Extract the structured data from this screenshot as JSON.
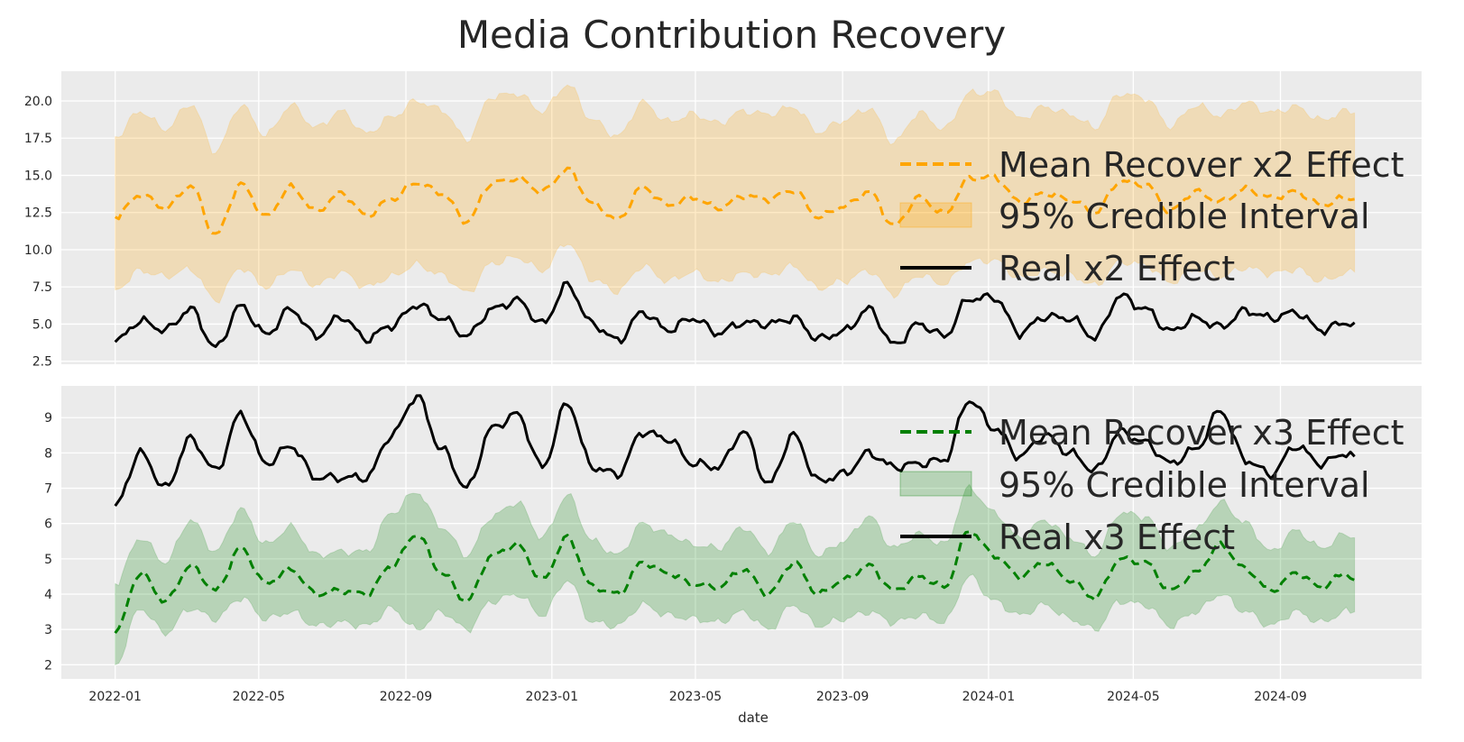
{
  "chart_data": {
    "title": "Media Contribution Recovery",
    "xlabel": "date",
    "x_ticks": [
      "2022-01",
      "2022-05",
      "2022-09",
      "2023-01",
      "2023-05",
      "2023-09",
      "2024-01",
      "2024-05",
      "2024-09"
    ],
    "x_range": [
      "2021-11-17",
      "2024-12-28"
    ],
    "grid": true,
    "legend_position": "right",
    "panels": [
      {
        "type": "line",
        "ylim": [
          2.3,
          22.0
        ],
        "y_ticks": [
          "2.5",
          "5.0",
          "7.5",
          "10.0",
          "12.5",
          "15.0",
          "17.5",
          "20.0"
        ],
        "series": [
          {
            "name": "Mean Recover x2 Effect",
            "color": "#ffa500",
            "style": "dashed",
            "x": [
              "2022-01-01",
              "2022-01-22",
              "2022-02-12",
              "2022-03-05",
              "2022-03-26",
              "2022-04-16",
              "2022-05-07",
              "2022-05-28",
              "2022-06-18",
              "2022-07-09",
              "2022-07-30",
              "2022-08-20",
              "2022-09-10",
              "2022-10-01",
              "2022-10-22",
              "2022-11-12",
              "2022-12-03",
              "2022-12-24",
              "2023-01-14",
              "2023-02-04",
              "2023-02-25",
              "2023-03-18",
              "2023-04-08",
              "2023-04-29",
              "2023-05-20",
              "2023-06-10",
              "2023-07-01",
              "2023-07-22",
              "2023-08-12",
              "2023-09-02",
              "2023-09-23",
              "2023-10-14",
              "2023-11-04",
              "2023-11-25",
              "2023-12-16",
              "2024-01-06",
              "2024-01-27",
              "2024-02-17",
              "2024-03-09",
              "2024-03-30",
              "2024-04-20",
              "2024-05-11",
              "2024-06-01",
              "2024-06-22",
              "2024-07-13",
              "2024-08-03",
              "2024-08-24",
              "2024-09-14",
              "2024-10-05",
              "2024-10-26",
              "2024-11-02"
            ],
            "values": [
              12.2,
              13.7,
              12.8,
              14.3,
              11.0,
              14.4,
              12.2,
              14.2,
              12.6,
              13.8,
              12.3,
              13.4,
              14.5,
              13.8,
              11.9,
              14.5,
              14.8,
              13.9,
              15.4,
              13.1,
              12.0,
              14.2,
              13.0,
              13.5,
              12.8,
              13.6,
              13.4,
              14.0,
              12.2,
              12.9,
              13.9,
              11.6,
              13.5,
              12.4,
              14.8,
              14.9,
              13.2,
              13.8,
              13.4,
              12.5,
              14.6,
              14.4,
              12.6,
              13.9,
              13.2,
              14.1,
              13.5,
              13.9,
              13.0,
              13.5,
              13.4
            ]
          },
          {
            "name": "95% Credible Interval",
            "color": "#ffa500",
            "style": "band",
            "lower": [
              7.3,
              8.6,
              8.2,
              8.7,
              6.6,
              8.8,
              7.5,
              8.7,
              7.6,
              8.5,
              7.5,
              8.2,
              9.0,
              8.3,
              7.1,
              9.1,
              9.5,
              8.6,
              10.5,
              8.0,
              7.2,
              8.9,
              7.9,
              8.5,
              7.8,
              8.4,
              8.3,
              8.9,
              7.4,
              7.9,
              8.6,
              7.0,
              8.3,
              7.7,
              9.2,
              9.3,
              8.1,
              8.6,
              8.3,
              7.6,
              9.2,
              9.0,
              7.8,
              8.7,
              8.2,
              8.8,
              8.4,
              8.7,
              7.9,
              8.4,
              8.5
            ],
            "upper": [
              17.6,
              19.3,
              18.1,
              19.8,
              16.6,
              19.7,
              17.7,
              19.7,
              18.2,
              19.3,
              17.8,
              18.9,
              20.0,
              19.4,
              17.4,
              20.3,
              20.5,
              19.3,
              21.1,
              18.7,
              17.6,
              19.9,
              18.6,
              19.1,
              18.5,
              19.3,
              19.1,
              19.6,
              17.9,
              18.7,
              19.5,
              17.2,
              19.2,
              18.1,
              20.5,
              20.6,
              18.8,
              19.6,
              19.1,
              18.2,
              20.5,
              20.2,
              18.3,
              19.7,
              19.0,
              19.9,
              19.2,
              19.6,
              18.7,
              19.3,
              19.2
            ]
          },
          {
            "name": "Real x2 Effect",
            "color": "#000000",
            "style": "solid",
            "x": [
              "2022-01-01",
              "2022-01-22",
              "2022-02-12",
              "2022-03-05",
              "2022-03-26",
              "2022-04-16",
              "2022-05-07",
              "2022-05-28",
              "2022-06-18",
              "2022-07-09",
              "2022-07-30",
              "2022-08-20",
              "2022-09-10",
              "2022-10-01",
              "2022-10-22",
              "2022-11-12",
              "2022-12-03",
              "2022-12-24",
              "2023-01-14",
              "2023-02-04",
              "2023-02-25",
              "2023-03-18",
              "2023-04-08",
              "2023-04-29",
              "2023-05-20",
              "2023-06-10",
              "2023-07-01",
              "2023-07-22",
              "2023-08-12",
              "2023-09-02",
              "2023-09-23",
              "2023-10-14",
              "2023-11-04",
              "2023-11-25",
              "2023-12-16",
              "2024-01-06",
              "2024-01-27",
              "2024-02-17",
              "2024-03-09",
              "2024-03-30",
              "2024-04-20",
              "2024-05-11",
              "2024-06-01",
              "2024-06-22",
              "2024-07-13",
              "2024-08-03",
              "2024-08-24",
              "2024-09-14",
              "2024-10-05",
              "2024-10-26",
              "2024-11-02"
            ],
            "values": [
              3.8,
              5.2,
              4.6,
              6.0,
              3.4,
              6.2,
              4.3,
              6.0,
              4.2,
              5.5,
              4.0,
              4.9,
              6.3,
              5.4,
              4.2,
              6.0,
              6.6,
              5.0,
              7.6,
              5.0,
              3.9,
              5.8,
              4.6,
              5.4,
              4.4,
              5.1,
              5.0,
              5.4,
              4.0,
              4.5,
              6.0,
              3.6,
              5.0,
              4.2,
              6.7,
              6.8,
              4.4,
              5.5,
              5.4,
              4.1,
              6.9,
              6.0,
              4.5,
              5.4,
              4.8,
              5.9,
              5.4,
              5.8,
              4.6,
              5.1,
              5.1
            ]
          }
        ]
      },
      {
        "type": "line",
        "ylim": [
          1.6,
          9.9
        ],
        "y_ticks": [
          "2",
          "3",
          "4",
          "5",
          "6",
          "7",
          "8",
          "9"
        ],
        "series": [
          {
            "name": "Mean Recover x3 Effect",
            "color": "#008000",
            "style": "dashed",
            "x": [
              "2022-01-01",
              "2022-01-22",
              "2022-02-12",
              "2022-03-05",
              "2022-03-26",
              "2022-04-16",
              "2022-05-07",
              "2022-05-28",
              "2022-06-18",
              "2022-07-09",
              "2022-07-30",
              "2022-08-20",
              "2022-09-10",
              "2022-10-01",
              "2022-10-22",
              "2022-11-12",
              "2022-12-03",
              "2022-12-24",
              "2023-01-14",
              "2023-02-04",
              "2023-02-25",
              "2023-03-18",
              "2023-04-08",
              "2023-04-29",
              "2023-05-20",
              "2023-06-10",
              "2023-07-01",
              "2023-07-22",
              "2023-08-12",
              "2023-09-02",
              "2023-09-23",
              "2023-10-14",
              "2023-11-04",
              "2023-11-25",
              "2023-12-16",
              "2024-01-06",
              "2024-01-27",
              "2024-02-17",
              "2024-03-09",
              "2024-03-30",
              "2024-04-20",
              "2024-05-11",
              "2024-06-01",
              "2024-06-22",
              "2024-07-13",
              "2024-08-03",
              "2024-08-24",
              "2024-09-14",
              "2024-10-05",
              "2024-10-26",
              "2024-11-02"
            ],
            "values": [
              2.9,
              4.6,
              3.8,
              4.8,
              4.1,
              5.3,
              4.3,
              4.7,
              4.0,
              4.1,
              4.0,
              4.8,
              5.7,
              4.6,
              3.8,
              5.1,
              5.4,
              4.4,
              5.6,
              4.2,
              4.0,
              4.9,
              4.6,
              4.3,
              4.2,
              4.7,
              4.0,
              4.9,
              4.0,
              4.4,
              4.8,
              4.1,
              4.5,
              4.2,
              5.8,
              5.1,
              4.5,
              4.9,
              4.4,
              3.9,
              5.0,
              4.9,
              4.1,
              4.6,
              5.4,
              4.7,
              4.1,
              4.6,
              4.2,
              4.6,
              4.4
            ]
          },
          {
            "name": "95% Credible Interval",
            "color": "#008000",
            "style": "band",
            "lower": [
              2.0,
              3.6,
              2.9,
              3.6,
              3.3,
              3.9,
              3.3,
              3.5,
              3.1,
              3.2,
              3.1,
              3.6,
              3.0,
              3.5,
              3.0,
              3.8,
              4.0,
              3.4,
              4.4,
              3.2,
              3.1,
              3.7,
              3.4,
              3.3,
              3.2,
              3.5,
              3.0,
              3.7,
              3.1,
              3.3,
              3.5,
              3.2,
              3.4,
              3.2,
              4.5,
              3.8,
              3.4,
              3.7,
              3.3,
              3.0,
              3.8,
              3.7,
              3.1,
              3.5,
              4.0,
              3.5,
              3.1,
              3.5,
              3.2,
              3.5,
              3.5
            ],
            "upper": [
              4.3,
              5.6,
              4.9,
              6.1,
              5.2,
              6.4,
              5.4,
              5.9,
              5.1,
              5.2,
              5.2,
              6.3,
              6.9,
              5.9,
              5.1,
              6.2,
              6.6,
              5.6,
              6.8,
              5.5,
              5.1,
              6.0,
              5.7,
              5.4,
              5.3,
              5.9,
              5.2,
              6.1,
              5.1,
              5.5,
              6.2,
              5.3,
              5.7,
              5.4,
              7.0,
              6.3,
              5.6,
              6.1,
              5.6,
              5.1,
              6.3,
              6.2,
              5.3,
              5.8,
              6.6,
              6.0,
              5.2,
              5.8,
              5.3,
              5.7,
              5.6
            ]
          },
          {
            "name": "Real x3 Effect",
            "color": "#000000",
            "style": "solid",
            "x": [
              "2022-01-01",
              "2022-01-22",
              "2022-02-12",
              "2022-03-05",
              "2022-03-26",
              "2022-04-16",
              "2022-05-07",
              "2022-05-28",
              "2022-06-18",
              "2022-07-09",
              "2022-07-30",
              "2022-08-20",
              "2022-09-10",
              "2022-10-01",
              "2022-10-22",
              "2022-11-12",
              "2022-12-03",
              "2022-12-24",
              "2023-01-14",
              "2023-02-04",
              "2023-02-25",
              "2023-03-18",
              "2023-04-08",
              "2023-04-29",
              "2023-05-20",
              "2023-06-10",
              "2023-07-01",
              "2023-07-22",
              "2023-08-12",
              "2023-09-02",
              "2023-09-23",
              "2023-10-14",
              "2023-11-04",
              "2023-11-25",
              "2023-12-16",
              "2024-01-06",
              "2024-01-27",
              "2024-02-17",
              "2024-03-09",
              "2024-03-30",
              "2024-04-20",
              "2024-05-11",
              "2024-06-01",
              "2024-06-22",
              "2024-07-13",
              "2024-08-03",
              "2024-08-24",
              "2024-09-14",
              "2024-10-05",
              "2024-10-26",
              "2024-11-02"
            ],
            "values": [
              6.5,
              8.0,
              7.0,
              8.4,
              7.5,
              9.1,
              7.7,
              8.2,
              7.3,
              7.3,
              7.3,
              8.5,
              9.6,
              8.1,
              7.0,
              8.7,
              9.1,
              7.6,
              9.4,
              7.6,
              7.4,
              8.6,
              8.4,
              7.7,
              7.6,
              8.6,
              7.1,
              8.5,
              7.2,
              7.4,
              8.0,
              7.6,
              7.7,
              7.8,
              9.5,
              8.7,
              7.9,
              8.5,
              8.0,
              7.5,
              8.6,
              8.3,
              7.7,
              8.1,
              9.2,
              7.8,
              7.4,
              8.2,
              7.7,
              8.0,
              7.9
            ]
          }
        ]
      }
    ]
  }
}
